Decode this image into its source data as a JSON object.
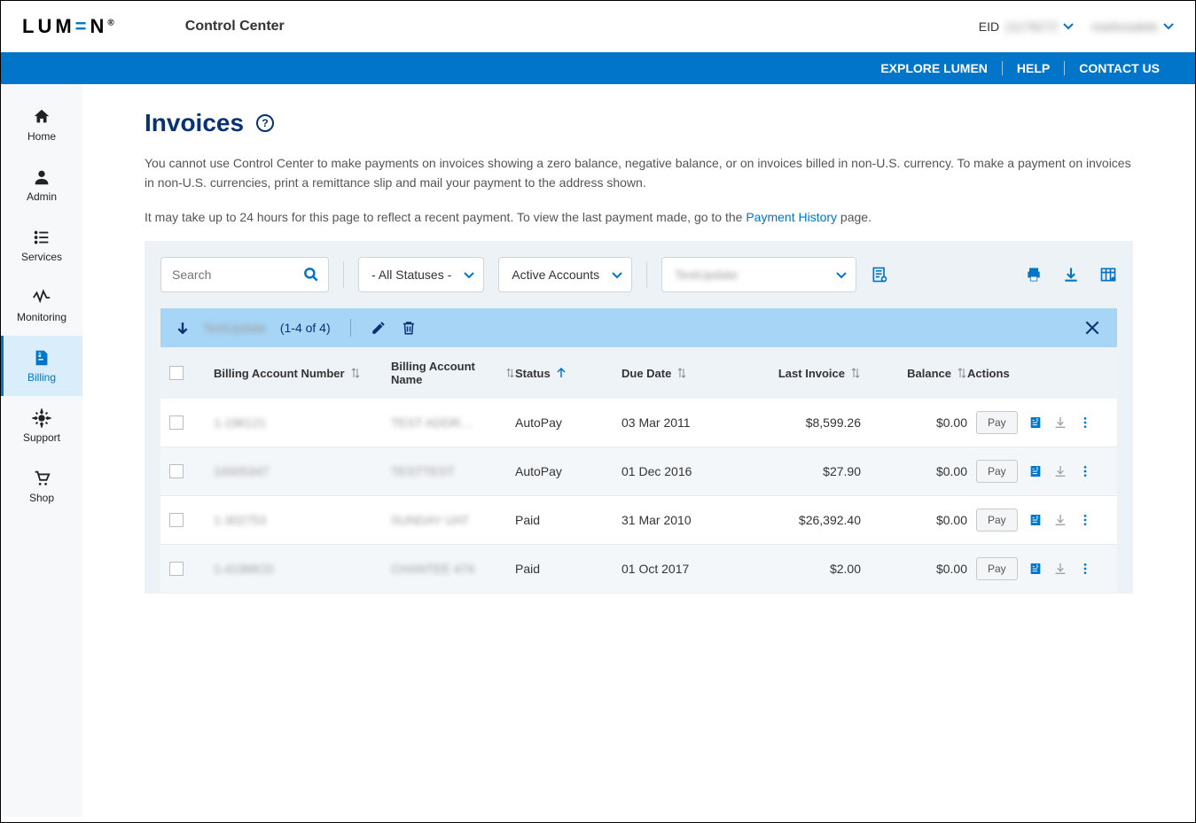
{
  "header": {
    "logo_text": "LUM=N",
    "product": "Control Center",
    "eid_label": "EID",
    "eid_value": "11178272",
    "user_name": "markosaleki"
  },
  "blue_bar": {
    "explore": "EXPLORE LUMEN",
    "help": "HELP",
    "contact": "CONTACT US"
  },
  "sidebar": {
    "items": [
      {
        "label": "Home"
      },
      {
        "label": "Admin"
      },
      {
        "label": "Services"
      },
      {
        "label": "Monitoring"
      },
      {
        "label": "Billing"
      },
      {
        "label": "Support"
      },
      {
        "label": "Shop"
      }
    ],
    "active_index": 4
  },
  "page": {
    "title": "Invoices",
    "intro1": "You cannot use Control Center to make payments on invoices showing a zero balance, negative balance, or on invoices billed in non-U.S. currency. To make a payment on invoices in non-U.S. currencies, print a remittance slip and mail your payment to the address shown.",
    "intro2_pre": "It may take up to 24 hours for this page to reflect a recent payment. To view the last payment made, go to the ",
    "intro2_link": "Payment History",
    "intro2_post": " page."
  },
  "filters": {
    "search_placeholder": "Search",
    "status_label": "- All Statuses -",
    "accounts_label": "Active Accounts",
    "group_label": "TestUpdate"
  },
  "selection": {
    "group_label": "TestUpdate",
    "count_text": "(1-4 of 4)"
  },
  "table": {
    "columns": {
      "acct_num": "Billing Account Number",
      "acct_name": "Billing Account Name",
      "status": "Status",
      "due": "Due Date",
      "last_inv": "Last Invoice",
      "balance": "Balance",
      "actions": "Actions",
      "pay_label": "Pay"
    },
    "rows": [
      {
        "acct_num": "1-196121",
        "acct_name": "TEST ADDR…",
        "status": "AutoPay",
        "due": "03 Mar 2011",
        "last_inv": "$8,599.26",
        "balance": "$0.00"
      },
      {
        "acct_num": "10005347",
        "acct_name": "TESTTEST",
        "status": "AutoPay",
        "due": "01 Dec 2016",
        "last_inv": "$27.90",
        "balance": "$0.00"
      },
      {
        "acct_num": "1-302753",
        "acct_name": "SUNDAY UAT",
        "status": "Paid",
        "due": "31 Mar 2010",
        "last_inv": "$26,392.40",
        "balance": "$0.00"
      },
      {
        "acct_num": "1-419MCD",
        "acct_name": "CHANTEE 474",
        "status": "Paid",
        "due": "01 Oct 2017",
        "last_inv": "$2.00",
        "balance": "$0.00"
      }
    ]
  }
}
